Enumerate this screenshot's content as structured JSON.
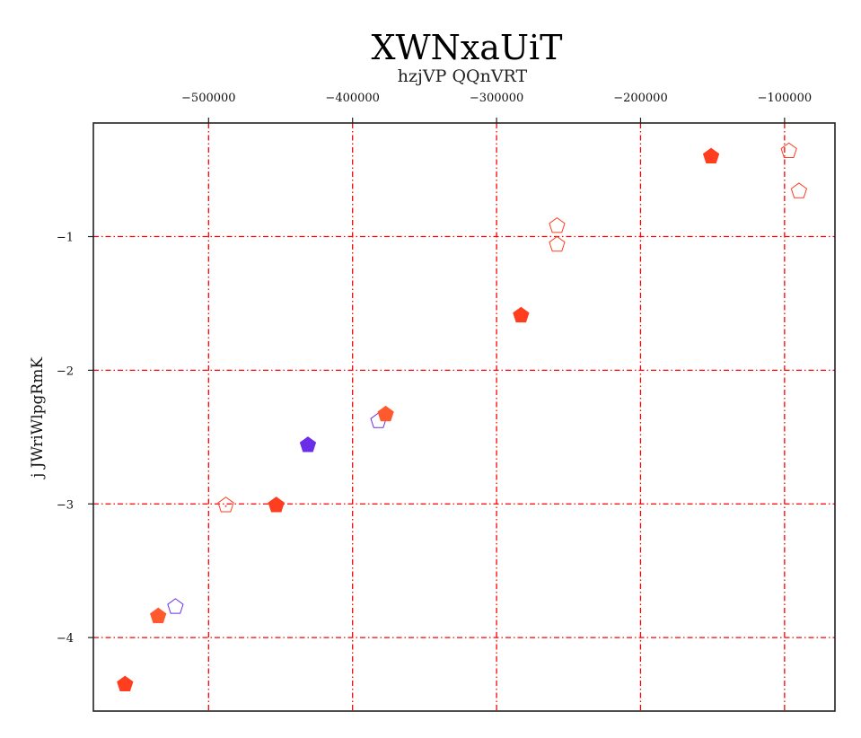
{
  "chart_data": {
    "type": "scatter",
    "title": "XWNxaUiT",
    "subtitle": "hzjVP QQnVRT",
    "xlabel": "",
    "ylabel": "j JWriWlpgRmK",
    "x_axis_position": "top",
    "xlim": [
      -580000,
      -65000
    ],
    "ylim": [
      -4.55,
      -0.15
    ],
    "x_ticks": [
      -500000,
      -400000,
      -300000,
      -200000,
      -100000
    ],
    "x_tick_labels": [
      "−500000",
      "−400000",
      "−300000",
      "−200000",
      "−100000"
    ],
    "y_ticks": [
      -1,
      -2,
      -3,
      -4
    ],
    "y_tick_labels": [
      "−1",
      "−2",
      "−3",
      "−4"
    ],
    "grid": true,
    "grid_color": "#ff0000",
    "marker": "pentagon",
    "points": [
      {
        "x": -558000,
        "y": -4.35,
        "color": "#ff3d1f",
        "filled": true
      },
      {
        "x": -535000,
        "y": -3.84,
        "color": "#ff5a2e",
        "filled": true
      },
      {
        "x": -523000,
        "y": -3.77,
        "color": "#6a2ee8",
        "filled": false
      },
      {
        "x": -488000,
        "y": -3.01,
        "color": "#ff3d1f",
        "filled": false,
        "center_dot": true
      },
      {
        "x": -453000,
        "y": -3.01,
        "color": "#ff3d1f",
        "filled": true
      },
      {
        "x": -431000,
        "y": -2.56,
        "color": "#6a2ee8",
        "filled": true
      },
      {
        "x": -382000,
        "y": -2.38,
        "color": "#6a2ee8",
        "filled": false
      },
      {
        "x": -377000,
        "y": -2.33,
        "color": "#ff5a2e",
        "filled": true
      },
      {
        "x": -283000,
        "y": -1.59,
        "color": "#ff3d1f",
        "filled": true
      },
      {
        "x": -258000,
        "y": -0.92,
        "color": "#ff3d1f",
        "filled": false
      },
      {
        "x": -258000,
        "y": -1.06,
        "color": "#ff3d1f",
        "filled": false
      },
      {
        "x": -151000,
        "y": -0.4,
        "color": "#ff3d1f",
        "filled": true
      },
      {
        "x": -97000,
        "y": -0.36,
        "color": "#ff3d1f",
        "filled": false
      },
      {
        "x": -90000,
        "y": -0.66,
        "color": "#ff3d1f",
        "filled": false
      }
    ]
  }
}
